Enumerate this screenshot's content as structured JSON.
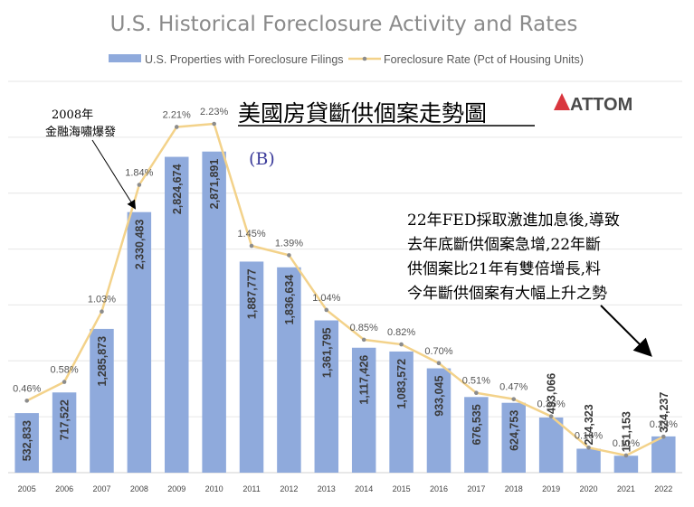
{
  "title": "U.S. Historical Foreclosure Activity and Rates",
  "legend": {
    "bars": "U.S. Properties with Foreclosure Filings",
    "line": "Foreclosure Rate (Pct of Housing Units)"
  },
  "colors": {
    "bar": "#8faadc",
    "line": "#f3d28a",
    "marker": "#8c8c8c",
    "grid": "#e6e6e6",
    "logo_accent": "#d9363e"
  },
  "annotations": {
    "cjk_title": "美國房貸斷供個案走勢圖",
    "logo": "ATTOM",
    "marker_b": "(B)",
    "crisis_year": "2008年",
    "crisis_label": "金融海嘯爆發",
    "note_lines": [
      "22年FED採取激進加息後,導致",
      "去年底斷供個案急增,22年斷",
      "供個案比21年有雙倍增長,料",
      "今年斷供個案有大幅上升之勢"
    ]
  },
  "chart_data": {
    "type": "bar",
    "title": "U.S. Historical Foreclosure Activity and Rates",
    "xlabel": "",
    "ylabel": "",
    "ylim": [
      0,
      3500000
    ],
    "grid": true,
    "legend_position": "top",
    "categories": [
      "2005",
      "2006",
      "2007",
      "2008",
      "2009",
      "2010",
      "2011",
      "2012",
      "2013",
      "2014",
      "2015",
      "2016",
      "2017",
      "2018",
      "2019",
      "2020",
      "2021",
      "2022"
    ],
    "series": [
      {
        "name": "U.S. Properties with Foreclosure Filings",
        "type": "bar",
        "values": [
          532833,
          717522,
          1285873,
          2330483,
          2824674,
          2871891,
          1887777,
          1836634,
          1361795,
          1117426,
          1083572,
          933045,
          676535,
          624753,
          493066,
          214323,
          151153,
          324237
        ],
        "labels": [
          "532,833",
          "717,522",
          "1,285,873",
          "2,330,483",
          "2,824,674",
          "2,871,891",
          "1,887,777",
          "1,836,634",
          "1,361,795",
          "1,117,426",
          "1,083,572",
          "933,045",
          "676,535",
          "624,753",
          "493,066",
          "214,323",
          "151,153",
          "324,237"
        ]
      },
      {
        "name": "Foreclosure Rate (Pct of Housing Units)",
        "type": "line",
        "axis": "secondary",
        "values": [
          0.46,
          0.58,
          1.03,
          1.84,
          2.21,
          2.23,
          1.45,
          1.39,
          1.04,
          0.85,
          0.82,
          0.7,
          0.51,
          0.47,
          0.36,
          0.16,
          0.11,
          0.23
        ],
        "labels": [
          "0.46%",
          "0.58%",
          "1.03%",
          "1.84%",
          "2.21%",
          "2.23%",
          "1.45%",
          "1.39%",
          "1.04%",
          "0.85%",
          "0.82%",
          "0.70%",
          "0.51%",
          "0.47%",
          "0.36%",
          "0.16%",
          "0.11%",
          "0.23%"
        ]
      }
    ]
  }
}
